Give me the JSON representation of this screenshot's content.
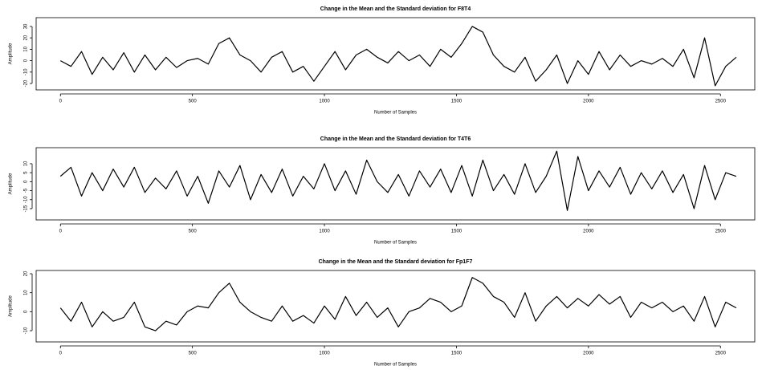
{
  "chart_data": [
    {
      "type": "line",
      "title": "Change in the Mean and the Standard deviation for F8T4",
      "xlabel": "Number of Samples",
      "ylabel": "Amplitude",
      "color": "#000000",
      "x": [
        0,
        40,
        80,
        120,
        160,
        200,
        240,
        280,
        320,
        360,
        400,
        440,
        480,
        520,
        560,
        600,
        640,
        680,
        720,
        760,
        800,
        840,
        880,
        920,
        960,
        1000,
        1040,
        1080,
        1120,
        1160,
        1200,
        1240,
        1280,
        1320,
        1360,
        1400,
        1440,
        1480,
        1520,
        1560,
        1600,
        1640,
        1680,
        1720,
        1760,
        1800,
        1840,
        1880,
        1920,
        1960,
        2000,
        2040,
        2080,
        2120,
        2160,
        2200,
        2240,
        2280,
        2320,
        2360,
        2400,
        2440,
        2480,
        2520,
        2560
      ],
      "values": [
        0,
        -5,
        8,
        -12,
        3,
        -8,
        7,
        -10,
        5,
        -8,
        3,
        -6,
        0,
        2,
        -3,
        15,
        20,
        5,
        0,
        -10,
        3,
        8,
        -10,
        -5,
        -18,
        -5,
        8,
        -8,
        5,
        10,
        3,
        -2,
        8,
        0,
        5,
        -5,
        10,
        3,
        15,
        30,
        25,
        5,
        -5,
        -10,
        3,
        -18,
        -8,
        5,
        -20,
        0,
        -12,
        8,
        -8,
        5,
        -5,
        0,
        -3,
        2,
        -5,
        10,
        -15,
        20,
        -22,
        -5,
        3
      ],
      "xlim": [
        -92,
        2630
      ],
      "ylim": [
        -25.6,
        37.7
      ],
      "xticks": [
        0,
        500,
        1000,
        1500,
        2000,
        2500
      ],
      "yticks": [
        -20,
        -10,
        0,
        10,
        20,
        30
      ]
    },
    {
      "type": "line",
      "title": "Change in the Mean and the Standard deviation for T4T6",
      "xlabel": "Number of Samples",
      "ylabel": "Amplitude",
      "color": "#000000",
      "x": [
        0,
        40,
        80,
        120,
        160,
        200,
        240,
        280,
        320,
        360,
        400,
        440,
        480,
        520,
        560,
        600,
        640,
        680,
        720,
        760,
        800,
        840,
        880,
        920,
        960,
        1000,
        1040,
        1080,
        1120,
        1160,
        1200,
        1240,
        1280,
        1320,
        1360,
        1400,
        1440,
        1480,
        1520,
        1560,
        1600,
        1640,
        1680,
        1720,
        1760,
        1800,
        1840,
        1880,
        1920,
        1960,
        2000,
        2040,
        2080,
        2120,
        2160,
        2200,
        2240,
        2280,
        2320,
        2360,
        2400,
        2440,
        2480,
        2520,
        2560
      ],
      "values": [
        3,
        8,
        -8,
        5,
        -5,
        7,
        -3,
        8,
        -6,
        2,
        -4,
        6,
        -8,
        3,
        -12,
        6,
        -3,
        9,
        -10,
        4,
        -6,
        7,
        -8,
        3,
        -4,
        10,
        -5,
        6,
        -7,
        12,
        0,
        -6,
        4,
        -8,
        6,
        -3,
        7,
        -6,
        9,
        -8,
        12,
        -5,
        4,
        -7,
        10,
        -6,
        3,
        17,
        -16,
        14,
        -5,
        6,
        -3,
        8,
        -7,
        5,
        -4,
        6,
        -6,
        4,
        -15,
        9,
        -10,
        5,
        3
      ],
      "xlim": [
        -92,
        2630
      ],
      "ylim": [
        -21.25,
        18.9
      ],
      "xticks": [
        0,
        500,
        1000,
        1500,
        2000,
        2500
      ],
      "yticks": [
        -15,
        -10,
        -5,
        0,
        5,
        10
      ]
    },
    {
      "type": "line",
      "title": "Change in the Mean and the Standard deviation for Fp1F7",
      "xlabel": "Number of Samples",
      "ylabel": "Amplitude",
      "color": "#000000",
      "x": [
        0,
        40,
        80,
        120,
        160,
        200,
        240,
        280,
        320,
        360,
        400,
        440,
        480,
        520,
        560,
        600,
        640,
        680,
        720,
        760,
        800,
        840,
        880,
        920,
        960,
        1000,
        1040,
        1080,
        1120,
        1160,
        1200,
        1240,
        1280,
        1320,
        1360,
        1400,
        1440,
        1480,
        1520,
        1560,
        1600,
        1640,
        1680,
        1720,
        1760,
        1800,
        1840,
        1880,
        1920,
        1960,
        2000,
        2040,
        2080,
        2120,
        2160,
        2200,
        2240,
        2280,
        2320,
        2360,
        2400,
        2440,
        2480,
        2520,
        2560
      ],
      "values": [
        2,
        -5,
        5,
        -8,
        0,
        -5,
        -3,
        5,
        -8,
        -10,
        -5,
        -7,
        0,
        3,
        2,
        10,
        15,
        5,
        0,
        -3,
        -5,
        3,
        -5,
        -2,
        -6,
        3,
        -4,
        8,
        -2,
        5,
        -3,
        2,
        -8,
        0,
        2,
        7,
        5,
        0,
        3,
        18,
        15,
        8,
        5,
        -3,
        10,
        -5,
        3,
        8,
        2,
        7,
        3,
        9,
        4,
        8,
        -3,
        5,
        2,
        5,
        0,
        3,
        -5,
        8,
        -8,
        5,
        2
      ],
      "xlim": [
        -92,
        2630
      ],
      "ylim": [
        -15.9,
        21.7
      ],
      "xticks": [
        0,
        500,
        1000,
        1500,
        2000,
        2500
      ],
      "yticks": [
        -10,
        0,
        10,
        20
      ]
    }
  ]
}
